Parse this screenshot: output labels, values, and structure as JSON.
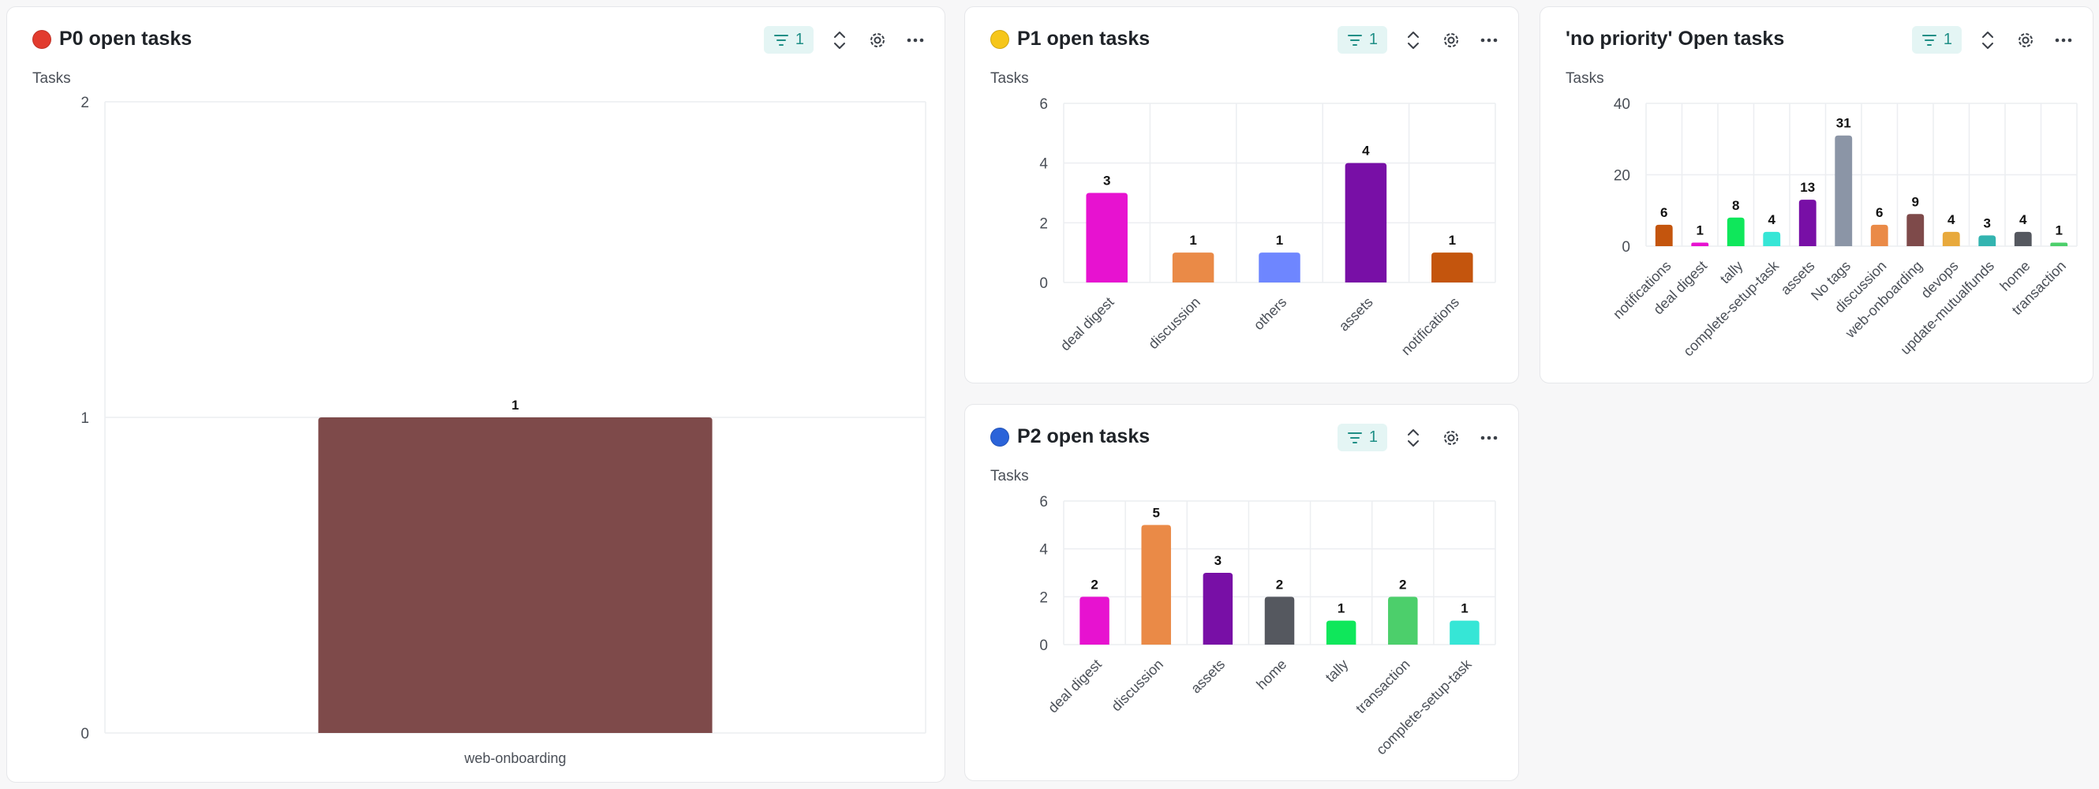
{
  "panels": [
    {
      "id": "p0",
      "title": "P0 open tasks",
      "dot_color": "#e23b2e",
      "filter_count": "1",
      "y_title": "Tasks",
      "chart_data": {
        "type": "bar",
        "title": "P0 open tasks",
        "ylabel": "Tasks",
        "xlabel": "",
        "ylim": [
          0,
          2
        ],
        "yticks": [
          0,
          1,
          2
        ],
        "grid": true,
        "categories": [
          "web-onboarding"
        ],
        "values": [
          1
        ],
        "colors": [
          "#7e4a4a"
        ],
        "label_rotation": 0
      }
    },
    {
      "id": "p1",
      "title": "P1 open tasks",
      "dot_color": "#f6c619",
      "filter_count": "1",
      "y_title": "Tasks",
      "chart_data": {
        "type": "bar",
        "title": "P1 open tasks",
        "ylabel": "Tasks",
        "xlabel": "",
        "ylim": [
          0,
          6
        ],
        "yticks": [
          0,
          2,
          4,
          6
        ],
        "grid": true,
        "categories": [
          "deal digest",
          "discussion",
          "others",
          "assets",
          "notifications"
        ],
        "values": [
          3,
          1,
          1,
          4,
          1
        ],
        "colors": [
          "#e712d0",
          "#ea8a47",
          "#6e86ff",
          "#780fa6",
          "#c4550d"
        ],
        "label_rotation": -45
      }
    },
    {
      "id": "np",
      "title": "'no priority' Open tasks",
      "dot_color": "",
      "filter_count": "1",
      "y_title": "Tasks",
      "chart_data": {
        "type": "bar",
        "title": "'no priority' Open tasks",
        "ylabel": "Tasks",
        "xlabel": "",
        "ylim": [
          0,
          40
        ],
        "yticks": [
          0,
          20,
          40
        ],
        "grid": true,
        "categories": [
          "notifications",
          "deal digest",
          "tally",
          "complete-setup-task",
          "assets",
          "No tags",
          "discussion",
          "web-onboarding",
          "devops",
          "update-mutualfunds",
          "home",
          "transaction"
        ],
        "values": [
          6,
          1,
          8,
          4,
          13,
          31,
          6,
          9,
          4,
          3,
          4,
          1
        ],
        "colors": [
          "#c4550d",
          "#e712d0",
          "#0fe75b",
          "#36e6d6",
          "#780fa6",
          "#8b95a6",
          "#ea8a47",
          "#7e4a4a",
          "#e8a93c",
          "#33b4b0",
          "#55585f",
          "#4ccf6b"
        ],
        "label_rotation": -45
      }
    },
    {
      "id": "p2",
      "title": "P2 open tasks",
      "dot_color": "#2b63d9",
      "filter_count": "1",
      "y_title": "Tasks",
      "chart_data": {
        "type": "bar",
        "title": "P2 open tasks",
        "ylabel": "Tasks",
        "xlabel": "",
        "ylim": [
          0,
          6
        ],
        "yticks": [
          0,
          2,
          4,
          6
        ],
        "grid": true,
        "categories": [
          "deal digest",
          "discussion",
          "assets",
          "home",
          "tally",
          "transaction",
          "complete-setup-task"
        ],
        "values": [
          2,
          5,
          3,
          2,
          1,
          2,
          1
        ],
        "colors": [
          "#e712d0",
          "#ea8a47",
          "#780fa6",
          "#55585f",
          "#0fe75b",
          "#4ccf6b",
          "#36e6d6"
        ],
        "label_rotation": -45
      }
    }
  ]
}
